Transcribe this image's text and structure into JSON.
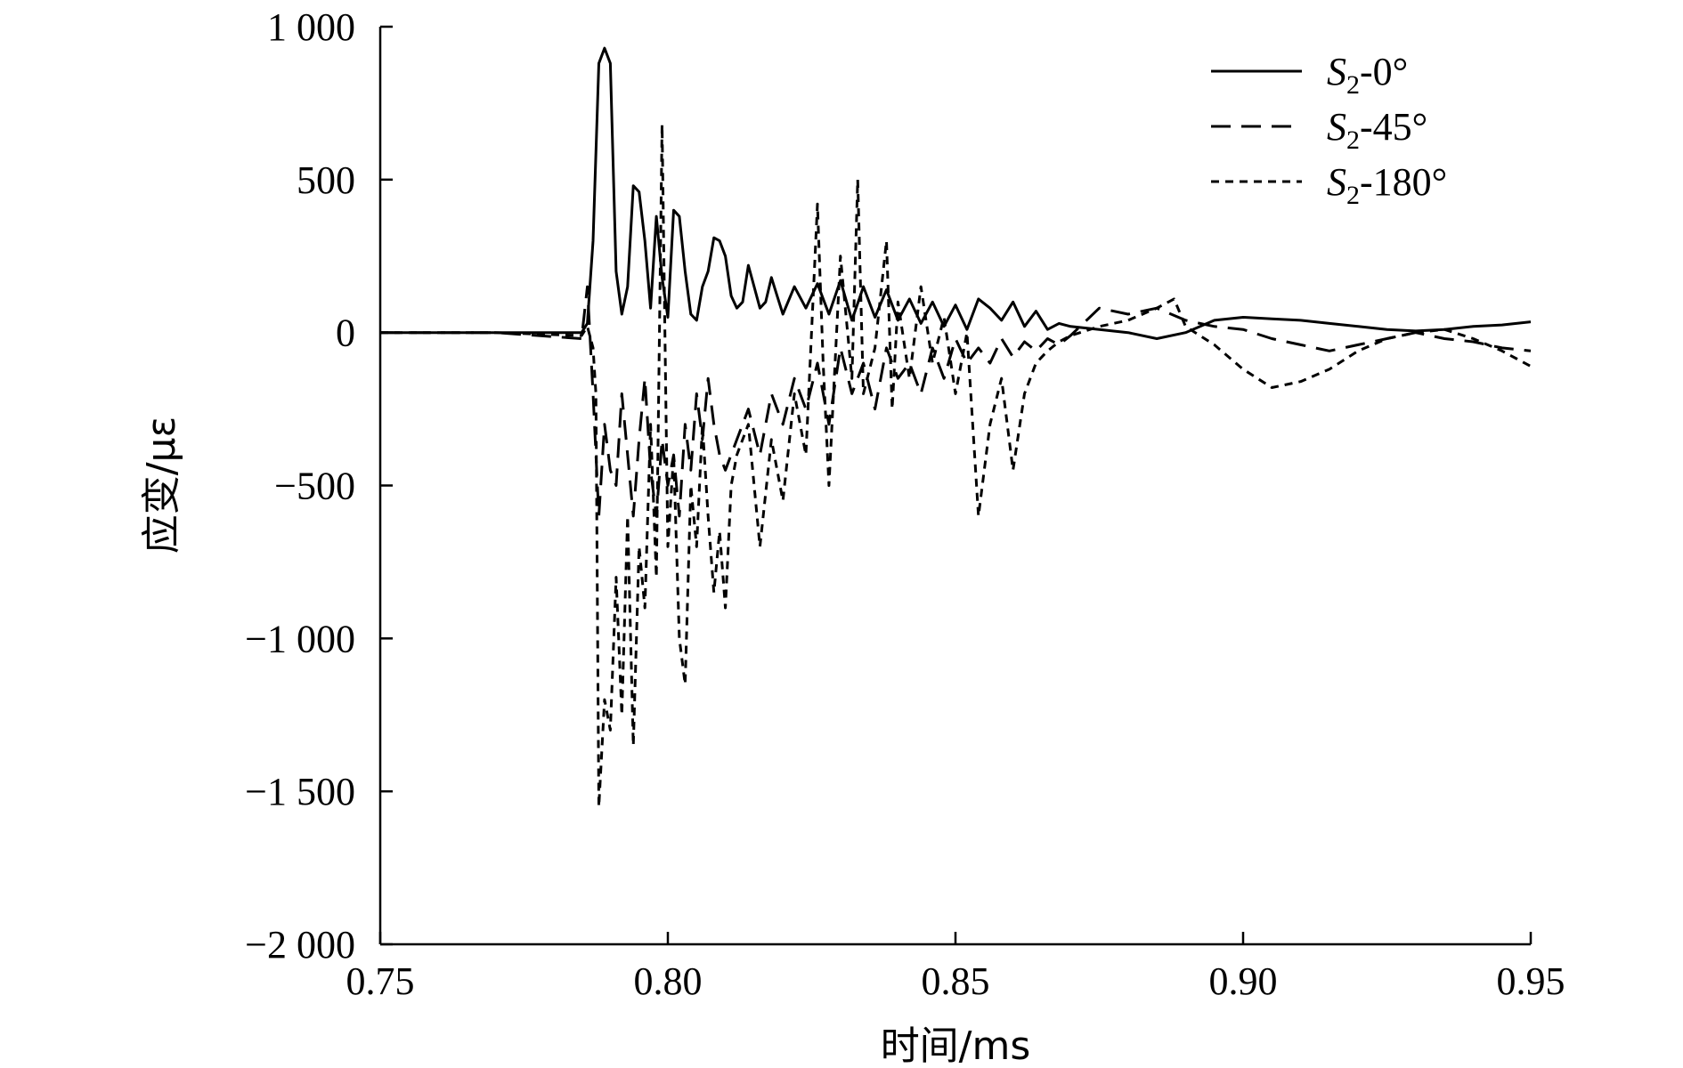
{
  "chart_data": {
    "type": "line",
    "xlabel": "时间/ms",
    "ylabel": "应变/με",
    "xlim": [
      0.75,
      0.95
    ],
    "ylim": [
      -2000,
      1000
    ],
    "x_ticks": [
      0.75,
      0.8,
      0.85,
      0.9,
      0.95
    ],
    "x_tick_labels": [
      "0.75",
      "0.80",
      "0.85",
      "0.90",
      "0.95"
    ],
    "y_ticks": [
      1000,
      500,
      0,
      -500,
      -1000,
      -1500,
      -2000
    ],
    "y_tick_labels": [
      "1 000",
      "500",
      "0",
      "−500",
      "−1 000",
      "−1 500",
      "−2 000"
    ],
    "grid": false,
    "legend_position": "top-right",
    "series": [
      {
        "name": "S2-0°",
        "legend": {
          "var": "S",
          "sub": "2",
          "suffix": "-0°"
        },
        "dash": "solid",
        "x": [
          0.75,
          0.77,
          0.785,
          0.786,
          0.787,
          0.788,
          0.789,
          0.79,
          0.791,
          0.792,
          0.793,
          0.794,
          0.795,
          0.796,
          0.797,
          0.798,
          0.799,
          0.8,
          0.801,
          0.802,
          0.803,
          0.804,
          0.805,
          0.806,
          0.807,
          0.808,
          0.809,
          0.81,
          0.811,
          0.812,
          0.813,
          0.814,
          0.815,
          0.816,
          0.817,
          0.818,
          0.819,
          0.82,
          0.822,
          0.824,
          0.826,
          0.828,
          0.83,
          0.832,
          0.834,
          0.836,
          0.838,
          0.84,
          0.842,
          0.844,
          0.846,
          0.848,
          0.85,
          0.852,
          0.854,
          0.856,
          0.858,
          0.86,
          0.862,
          0.864,
          0.866,
          0.868,
          0.87,
          0.875,
          0.88,
          0.885,
          0.89,
          0.895,
          0.9,
          0.905,
          0.91,
          0.915,
          0.92,
          0.925,
          0.93,
          0.935,
          0.94,
          0.945,
          0.95
        ],
        "y": [
          0,
          0,
          0,
          30,
          300,
          880,
          930,
          880,
          200,
          60,
          150,
          480,
          460,
          300,
          80,
          380,
          180,
          50,
          400,
          380,
          200,
          60,
          40,
          150,
          200,
          310,
          300,
          250,
          120,
          80,
          100,
          220,
          150,
          80,
          100,
          180,
          120,
          60,
          150,
          80,
          160,
          60,
          170,
          40,
          150,
          50,
          140,
          40,
          110,
          30,
          100,
          20,
          90,
          10,
          110,
          80,
          40,
          100,
          20,
          70,
          10,
          30,
          20,
          10,
          0,
          -20,
          0,
          40,
          50,
          45,
          40,
          30,
          20,
          10,
          5,
          10,
          20,
          25,
          35
        ]
      },
      {
        "name": "S2-45°",
        "legend": {
          "var": "S",
          "sub": "2",
          "suffix": "-45°"
        },
        "dash": "long-dash",
        "x": [
          0.75,
          0.77,
          0.785,
          0.786,
          0.787,
          0.788,
          0.789,
          0.79,
          0.791,
          0.792,
          0.793,
          0.794,
          0.795,
          0.796,
          0.797,
          0.798,
          0.799,
          0.8,
          0.801,
          0.802,
          0.803,
          0.804,
          0.805,
          0.806,
          0.807,
          0.808,
          0.809,
          0.81,
          0.812,
          0.814,
          0.816,
          0.818,
          0.82,
          0.822,
          0.824,
          0.826,
          0.828,
          0.83,
          0.832,
          0.834,
          0.836,
          0.838,
          0.84,
          0.842,
          0.844,
          0.846,
          0.848,
          0.85,
          0.852,
          0.854,
          0.856,
          0.858,
          0.86,
          0.862,
          0.864,
          0.866,
          0.868,
          0.87,
          0.875,
          0.88,
          0.885,
          0.89,
          0.895,
          0.9,
          0.905,
          0.91,
          0.915,
          0.92,
          0.925,
          0.93,
          0.935,
          0.94,
          0.945,
          0.95
        ],
        "y": [
          0,
          0,
          -20,
          150,
          -200,
          -600,
          -300,
          -450,
          -500,
          -200,
          -400,
          -600,
          -350,
          -150,
          -450,
          -600,
          -350,
          -500,
          -400,
          -600,
          -300,
          -450,
          -200,
          -350,
          -150,
          -300,
          -400,
          -450,
          -350,
          -250,
          -400,
          -200,
          -300,
          -150,
          -250,
          -100,
          -300,
          -50,
          -200,
          -100,
          -250,
          -50,
          -150,
          -100,
          -200,
          -50,
          -150,
          -20,
          -100,
          -50,
          -100,
          -20,
          -80,
          -30,
          -60,
          -20,
          -40,
          -10,
          80,
          60,
          80,
          40,
          20,
          10,
          -20,
          -40,
          -60,
          -40,
          -20,
          0,
          -20,
          -30,
          -50,
          -60
        ]
      },
      {
        "name": "S2-180°",
        "legend": {
          "var": "S",
          "sub": "2",
          "suffix": "-180°"
        },
        "dash": "short-dash",
        "x": [
          0.75,
          0.77,
          0.785,
          0.786,
          0.787,
          0.7875,
          0.788,
          0.789,
          0.79,
          0.791,
          0.792,
          0.793,
          0.794,
          0.795,
          0.796,
          0.797,
          0.798,
          0.799,
          0.8,
          0.801,
          0.802,
          0.803,
          0.804,
          0.805,
          0.806,
          0.807,
          0.808,
          0.809,
          0.81,
          0.811,
          0.812,
          0.814,
          0.816,
          0.818,
          0.82,
          0.822,
          0.824,
          0.826,
          0.827,
          0.828,
          0.83,
          0.832,
          0.833,
          0.834,
          0.836,
          0.838,
          0.839,
          0.84,
          0.842,
          0.844,
          0.846,
          0.848,
          0.85,
          0.852,
          0.854,
          0.856,
          0.858,
          0.86,
          0.862,
          0.864,
          0.866,
          0.868,
          0.87,
          0.875,
          0.88,
          0.885,
          0.888,
          0.89,
          0.895,
          0.9,
          0.905,
          0.91,
          0.915,
          0.92,
          0.925,
          0.93,
          0.935,
          0.94,
          0.945,
          0.95
        ],
        "y": [
          0,
          0,
          -10,
          20,
          -50,
          -200,
          -1550,
          -1200,
          -1300,
          -800,
          -1250,
          -600,
          -1350,
          -700,
          -900,
          -300,
          -800,
          680,
          -700,
          -400,
          -1000,
          -1150,
          -500,
          -700,
          -300,
          -600,
          -850,
          -650,
          -900,
          -500,
          -400,
          -300,
          -700,
          -350,
          -550,
          -200,
          -400,
          420,
          -100,
          -500,
          250,
          -150,
          500,
          -200,
          -50,
          300,
          -250,
          100,
          -150,
          150,
          -100,
          50,
          -200,
          0,
          -600,
          -300,
          -150,
          -450,
          -200,
          -100,
          -60,
          -30,
          -10,
          20,
          40,
          80,
          110,
          20,
          -40,
          -120,
          -180,
          -160,
          -120,
          -60,
          -20,
          0,
          10,
          -20,
          -60,
          -110
        ]
      }
    ]
  }
}
